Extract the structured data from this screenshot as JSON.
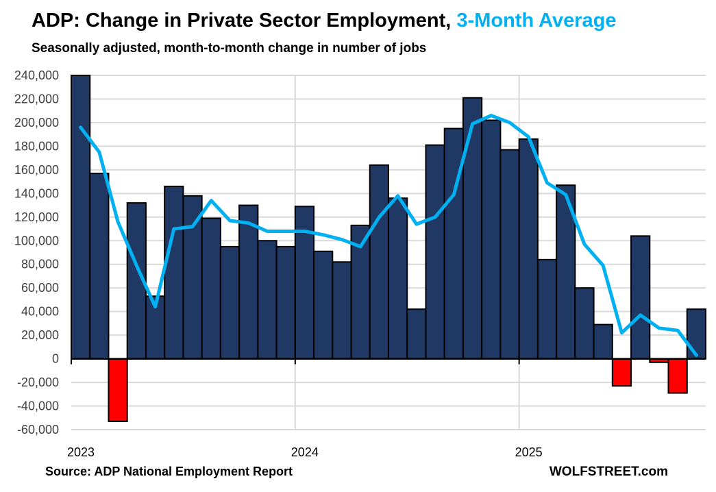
{
  "title": {
    "main": "ADP: Change in Private Sector Employment,",
    "highlight": "3-Month Average"
  },
  "subtitle": "Seasonally adjusted, month-to-month change in number of jobs",
  "footer": {
    "source": "Source: ADP National Employment Report",
    "brand": "WOLFSTREET.com"
  },
  "colors": {
    "bar_positive": "#203864",
    "bar_negative": "#FF0000",
    "line": "#00B0F0",
    "grid": "#D9D9D9",
    "highlight": "#00B0F0"
  },
  "chart_data": {
    "type": "bar",
    "title": "ADP: Change in Private Sector Employment, 3-Month Average",
    "xlabel": "",
    "ylabel": "",
    "ylim": [
      -60000,
      240000
    ],
    "grid": true,
    "yticks": [
      "-60,000",
      "-40,000",
      "-20,000",
      "0",
      "20,000",
      "40,000",
      "60,000",
      "80,000",
      "100,000",
      "120,000",
      "140,000",
      "160,000",
      "180,000",
      "200,000",
      "220,000",
      "240,000"
    ],
    "ytick_values": [
      -60000,
      -40000,
      -20000,
      0,
      20000,
      40000,
      60000,
      80000,
      100000,
      120000,
      140000,
      160000,
      180000,
      200000,
      220000,
      240000
    ],
    "xticks": [
      {
        "label": "2023",
        "month_index": 0
      },
      {
        "label": "2024",
        "month_index": 12
      },
      {
        "label": "2025",
        "month_index": 24
      }
    ],
    "categories": [
      "2023-01",
      "2023-02",
      "2023-03",
      "2023-04",
      "2023-05",
      "2023-06",
      "2023-07",
      "2023-08",
      "2023-09",
      "2023-10",
      "2023-11",
      "2023-12",
      "2024-01",
      "2024-02",
      "2024-03",
      "2024-04",
      "2024-05",
      "2024-06",
      "2024-07",
      "2024-08",
      "2024-09",
      "2024-10",
      "2024-11",
      "2024-12",
      "2025-01",
      "2025-02",
      "2025-03",
      "2025-04",
      "2025-05",
      "2025-06",
      "2025-07",
      "2025-08",
      "2025-09",
      "2025-10"
    ],
    "series": [
      {
        "kind": "bar",
        "values": [
          245000,
          157000,
          -53000,
          132000,
          53000,
          146000,
          138000,
          119000,
          95000,
          130000,
          100000,
          95000,
          129000,
          91000,
          82000,
          113000,
          164000,
          136000,
          42000,
          181000,
          195000,
          221000,
          202000,
          177000,
          186000,
          84000,
          147000,
          60000,
          29000,
          -23000,
          104000,
          -3000,
          -29000,
          42000
        ]
      },
      {
        "kind": "line",
        "name": "3-Month Average",
        "values": [
          196000,
          175000,
          116000,
          79000,
          44000,
          110000,
          112000,
          134000,
          117000,
          115000,
          108000,
          108000,
          108000,
          105000,
          101000,
          95000,
          120000,
          138000,
          114000,
          120000,
          139000,
          199000,
          206000,
          200000,
          188000,
          149000,
          139000,
          97000,
          79000,
          22000,
          37000,
          26000,
          24000,
          3000
        ]
      }
    ]
  }
}
